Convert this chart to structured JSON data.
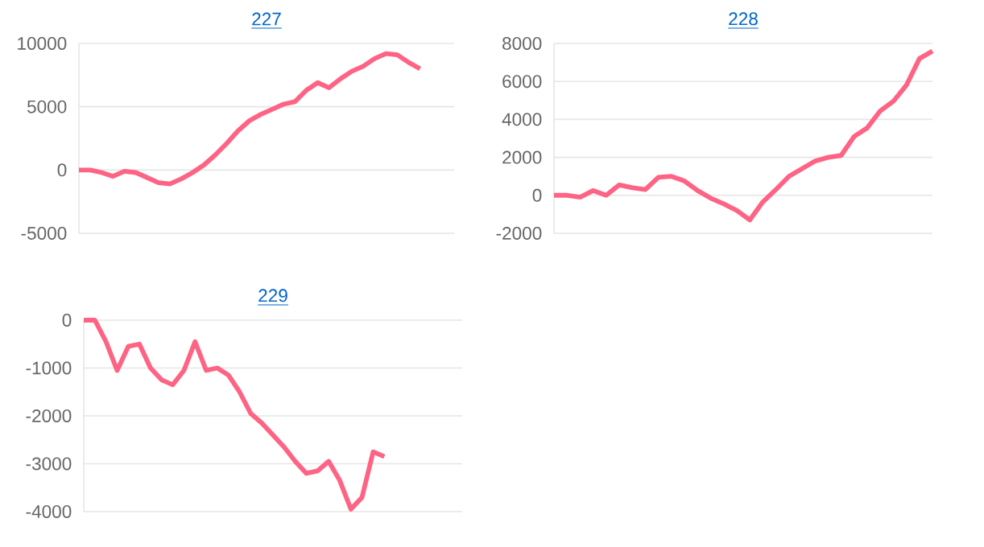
{
  "chart_data": [
    {
      "type": "line",
      "title": "227",
      "categories": [
        null,
        null,
        null,
        null,
        null,
        null,
        null,
        null,
        null,
        null,
        null,
        null,
        null,
        null,
        null,
        null,
        null,
        null,
        null,
        null,
        null,
        null,
        null,
        null,
        null,
        null,
        null,
        null,
        null,
        null,
        null,
        null,
        null,
        null
      ],
      "values": [
        0,
        0,
        -200,
        -500,
        -100,
        -200,
        -600,
        -1000,
        -1100,
        -700,
        -200,
        400,
        1200,
        2100,
        3100,
        3900,
        4400,
        4800,
        5200,
        5400,
        6300,
        6900,
        6500,
        7200,
        7800,
        8200,
        8800,
        9200,
        9100,
        8500,
        8000,
        null,
        null,
        null
      ],
      "color": "#ff6384",
      "ylim": [
        -5000,
        10000
      ],
      "yticks": [
        -5000,
        0,
        5000,
        10000
      ],
      "grid": "y",
      "tick_labels": "y",
      "line_style": "solid"
    },
    {
      "type": "line",
      "title": "228",
      "categories": [
        null,
        null,
        null,
        null,
        null,
        null,
        null,
        null,
        null,
        null,
        null,
        null,
        null,
        null,
        null,
        null,
        null,
        null,
        null,
        null,
        null,
        null,
        null,
        null,
        null,
        null,
        null,
        null,
        null,
        null
      ],
      "values": [
        0,
        0,
        -100,
        250,
        0,
        550,
        400,
        300,
        950,
        1000,
        750,
        250,
        -150,
        -450,
        -800,
        -1300,
        -350,
        300,
        1000,
        1400,
        1800,
        2000,
        2100,
        3100,
        3550,
        4450,
        4950,
        5800,
        7200,
        7600
      ],
      "color": "#ff6384",
      "ylim": [
        -2000,
        8000
      ],
      "yticks": [
        -2000,
        0,
        2000,
        4000,
        6000,
        8000
      ],
      "grid": "y",
      "tick_labels": "y",
      "line_style": "solid"
    },
    {
      "type": "line",
      "title": "229",
      "categories": [
        null,
        null,
        null,
        null,
        null,
        null,
        null,
        null,
        null,
        null,
        null,
        null,
        null,
        null,
        null,
        null,
        null,
        null,
        null,
        null,
        null,
        null,
        null,
        null,
        null,
        null,
        null,
        null,
        null,
        null,
        null,
        null,
        null,
        null,
        null
      ],
      "values": [
        0,
        0,
        -450,
        -1050,
        -550,
        -500,
        -1000,
        -1250,
        -1350,
        -1050,
        -450,
        -1050,
        -1000,
        -1150,
        -1500,
        -1950,
        -2150,
        -2400,
        -2650,
        -2950,
        -3200,
        -3150,
        -2950,
        -3350,
        -3950,
        -3700,
        -2750,
        -2850,
        null,
        null,
        null,
        null,
        null,
        null,
        null
      ],
      "color": "#ff6384",
      "ylim": [
        -4000,
        0
      ],
      "yticks": [
        -4000,
        -3000,
        -2000,
        -1000,
        0
      ],
      "grid": "y",
      "tick_labels": "y",
      "line_style": "solid"
    }
  ]
}
